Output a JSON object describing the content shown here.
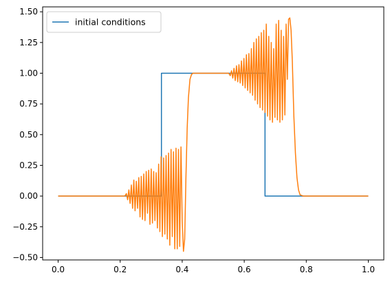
{
  "chart_data": {
    "type": "line",
    "title": "",
    "xlabel": "",
    "ylabel": "",
    "xlim": [
      -0.05,
      1.05
    ],
    "ylim": [
      -0.52,
      1.54
    ],
    "grid": false,
    "legend_placement": "upper-left",
    "x_ticks": [
      {
        "value": 0.0,
        "label": "0.0"
      },
      {
        "value": 0.2,
        "label": "0.2"
      },
      {
        "value": 0.4,
        "label": "0.4"
      },
      {
        "value": 0.6,
        "label": "0.6"
      },
      {
        "value": 0.8,
        "label": "0.8"
      },
      {
        "value": 1.0,
        "label": "1.0"
      }
    ],
    "y_ticks": [
      {
        "value": -0.5,
        "label": "−0.50"
      },
      {
        "value": -0.25,
        "label": "−0.25"
      },
      {
        "value": 0.0,
        "label": "0.00"
      },
      {
        "value": 0.25,
        "label": "0.25"
      },
      {
        "value": 0.5,
        "label": "0.50"
      },
      {
        "value": 0.75,
        "label": "0.75"
      },
      {
        "value": 1.0,
        "label": "1.00"
      },
      {
        "value": 1.25,
        "label": "1.25"
      },
      {
        "value": 1.5,
        "label": "1.50"
      }
    ],
    "series": [
      {
        "name": "initial conditions",
        "color": "#1f77b4",
        "x": [
          0.0,
          0.333,
          0.333,
          0.667,
          0.667,
          1.0
        ],
        "y": [
          0.0,
          0.0,
          1.0,
          1.0,
          0.0,
          0.0
        ]
      },
      {
        "color": "#ff7f0e",
        "x": [
          0.0,
          0.215,
          0.22,
          0.224,
          0.228,
          0.232,
          0.236,
          0.24,
          0.244,
          0.248,
          0.252,
          0.256,
          0.26,
          0.264,
          0.268,
          0.272,
          0.276,
          0.28,
          0.284,
          0.288,
          0.292,
          0.296,
          0.3,
          0.304,
          0.308,
          0.312,
          0.316,
          0.32,
          0.324,
          0.328,
          0.332,
          0.336,
          0.34,
          0.344,
          0.348,
          0.352,
          0.356,
          0.36,
          0.364,
          0.368,
          0.372,
          0.376,
          0.38,
          0.384,
          0.388,
          0.392,
          0.396,
          0.4,
          0.404,
          0.408,
          0.412,
          0.416,
          0.42,
          0.425,
          0.43,
          0.435,
          0.44,
          0.445,
          0.45,
          0.46,
          0.5,
          0.54,
          0.55,
          0.555,
          0.559,
          0.563,
          0.567,
          0.571,
          0.575,
          0.579,
          0.583,
          0.587,
          0.591,
          0.595,
          0.599,
          0.603,
          0.607,
          0.611,
          0.615,
          0.619,
          0.623,
          0.627,
          0.631,
          0.635,
          0.639,
          0.643,
          0.647,
          0.651,
          0.655,
          0.659,
          0.663,
          0.667,
          0.671,
          0.675,
          0.679,
          0.683,
          0.687,
          0.691,
          0.695,
          0.699,
          0.703,
          0.707,
          0.711,
          0.715,
          0.719,
          0.723,
          0.727,
          0.731,
          0.735,
          0.739,
          0.743,
          0.747,
          0.751,
          0.755,
          0.76,
          0.765,
          0.77,
          0.775,
          0.78,
          0.79,
          0.8,
          1.0
        ],
        "y": [
          0.0,
          0.0,
          0.02,
          -0.03,
          0.05,
          -0.06,
          0.09,
          -0.1,
          0.13,
          -0.12,
          0.12,
          -0.1,
          0.15,
          -0.17,
          0.16,
          -0.19,
          0.18,
          -0.2,
          0.2,
          -0.14,
          0.21,
          -0.23,
          0.22,
          -0.22,
          0.2,
          -0.2,
          0.19,
          -0.26,
          0.26,
          -0.29,
          0.32,
          -0.33,
          0.31,
          -0.31,
          0.33,
          -0.35,
          0.35,
          -0.4,
          0.38,
          -0.33,
          0.36,
          -0.43,
          0.39,
          -0.43,
          0.38,
          -0.41,
          0.4,
          -0.2,
          -0.45,
          -0.35,
          0.15,
          0.55,
          0.8,
          0.95,
          0.99,
          1.0,
          1.0,
          1.0,
          1.0,
          1.0,
          1.0,
          1.0,
          1.0,
          0.98,
          1.02,
          0.96,
          1.04,
          0.94,
          1.06,
          0.93,
          1.07,
          0.92,
          1.1,
          0.9,
          1.12,
          0.88,
          1.15,
          0.86,
          1.16,
          0.84,
          1.2,
          0.82,
          1.25,
          0.78,
          1.28,
          0.75,
          1.3,
          0.72,
          1.33,
          0.7,
          1.35,
          0.68,
          1.4,
          0.65,
          1.3,
          0.62,
          1.25,
          0.6,
          1.2,
          0.64,
          1.4,
          0.62,
          1.43,
          0.6,
          1.35,
          0.62,
          1.3,
          0.66,
          1.4,
          0.95,
          1.44,
          1.45,
          1.35,
          1.1,
          0.65,
          0.35,
          0.15,
          0.05,
          0.01,
          0.0,
          0.0,
          0.0
        ]
      }
    ]
  }
}
